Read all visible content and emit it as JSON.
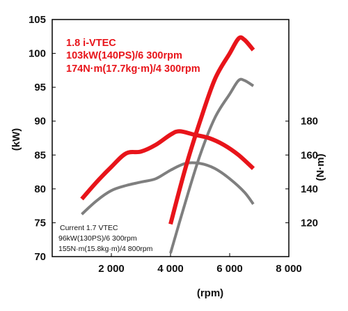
{
  "chart_data": {
    "type": "line",
    "xlabel": "(rpm)",
    "ylabel_left": "(kW)",
    "ylabel_right": "(N·m)",
    "xlim": [
      0,
      8000
    ],
    "ylim_left": [
      70,
      105
    ],
    "ylim_right": [
      100,
      240
    ],
    "x_ticks": [
      {
        "value": 2000,
        "label": "2 000"
      },
      {
        "value": 4000,
        "label": "4 000"
      },
      {
        "value": 6000,
        "label": "6 000"
      },
      {
        "value": 8000,
        "label": "8 000"
      }
    ],
    "y_ticks_left": [
      {
        "value": 70,
        "label": "70"
      },
      {
        "value": 75,
        "label": "75"
      },
      {
        "value": 80,
        "label": "80"
      },
      {
        "value": 85,
        "label": "85"
      },
      {
        "value": 90,
        "label": "90"
      },
      {
        "value": 95,
        "label": "95"
      },
      {
        "value": 100,
        "label": "100"
      },
      {
        "value": 105,
        "label": "105"
      }
    ],
    "y_ticks_right": [
      {
        "value": 120,
        "label": "120"
      },
      {
        "value": 140,
        "label": "140"
      },
      {
        "value": 160,
        "label": "160"
      },
      {
        "value": 180,
        "label": "180"
      }
    ],
    "annotations": {
      "new_engine": [
        "1.8 i-VTEC",
        "103kW(140PS)/6 300rpm",
        "174N·m(17.7kg·m)/4 300rpm"
      ],
      "current_engine": [
        "Current  1.7 VTEC",
        "96kW(130PS)/6 300rpm",
        "155N·m(15.8kg·m)/4 800rpm"
      ]
    },
    "series": [
      {
        "engine": "1.8 i-VTEC",
        "quantity": "torque",
        "axis": "right",
        "color": "#e8141a",
        "points": [
          [
            1000,
            134
          ],
          [
            1500,
            144
          ],
          [
            2000,
            153
          ],
          [
            2500,
            161
          ],
          [
            3000,
            162
          ],
          [
            3500,
            166
          ],
          [
            4000,
            172
          ],
          [
            4300,
            174
          ],
          [
            4800,
            172
          ],
          [
            5300,
            170
          ],
          [
            5800,
            166
          ],
          [
            6300,
            160
          ],
          [
            6800,
            152
          ]
        ]
      },
      {
        "engine": "1.8 i-VTEC",
        "quantity": "power",
        "axis": "left",
        "color": "#e8141a",
        "points": [
          [
            4000,
            74.8
          ],
          [
            4500,
            83
          ],
          [
            5000,
            90
          ],
          [
            5500,
            96.2
          ],
          [
            6000,
            100
          ],
          [
            6300,
            102.2
          ],
          [
            6500,
            102
          ],
          [
            6800,
            100.5
          ]
        ]
      },
      {
        "engine": "1.7 VTEC",
        "quantity": "torque",
        "axis": "right",
        "color": "#7f7f7f",
        "points": [
          [
            1000,
            125
          ],
          [
            1500,
            133
          ],
          [
            2000,
            139
          ],
          [
            2500,
            142
          ],
          [
            3000,
            144
          ],
          [
            3500,
            146
          ],
          [
            4000,
            151
          ],
          [
            4500,
            155
          ],
          [
            5000,
            155
          ],
          [
            5500,
            152
          ],
          [
            6000,
            146
          ],
          [
            6500,
            138
          ],
          [
            6800,
            131
          ]
        ]
      },
      {
        "engine": "1.7 VTEC",
        "quantity": "power",
        "axis": "left",
        "color": "#7f7f7f",
        "points": [
          [
            4000,
            70.5
          ],
          [
            4500,
            78
          ],
          [
            5000,
            85
          ],
          [
            5500,
            90.5
          ],
          [
            6000,
            94
          ],
          [
            6300,
            96
          ],
          [
            6500,
            96
          ],
          [
            6800,
            95.2
          ]
        ]
      }
    ]
  }
}
